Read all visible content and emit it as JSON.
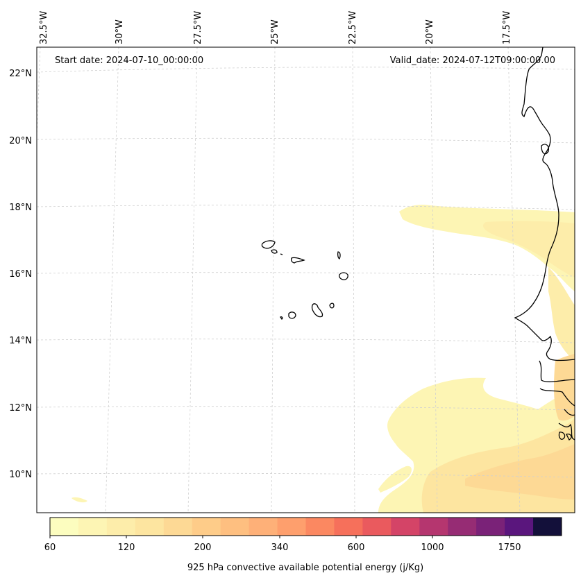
{
  "map": {
    "start_date": "Start date: 2024-07-10_00:00:00",
    "valid_date": "Valid_date: 2024-07-12T09:00:00.00",
    "lon_labels": [
      "32.5°W",
      "30°W",
      "27.5°W",
      "25°W",
      "22.5°W",
      "20°W",
      "17.5°W"
    ],
    "lat_labels": [
      "22°N",
      "20°N",
      "18°N",
      "16°N",
      "14°N",
      "12°N",
      "10°N"
    ],
    "gridlines": true,
    "coastline_color": "#000000",
    "gridline_color": "#d0d0d0"
  },
  "colorbar": {
    "label": "925 hPa convective available potential energy (j/Kg)",
    "tick_labels": [
      "60",
      "120",
      "200",
      "340",
      "600",
      "1000",
      "1750"
    ],
    "colors": [
      "#fcfdbf",
      "#fdf5b4",
      "#fdedaa",
      "#fde5a0",
      "#fdd995",
      "#fecc89",
      "#febf80",
      "#feb078",
      "#fe9f6d",
      "#fb8861",
      "#f6705b",
      "#ea5a5e",
      "#d44467",
      "#b5366f",
      "#962c74",
      "#7a2278",
      "#5a167d",
      "#13103a"
    ]
  }
}
